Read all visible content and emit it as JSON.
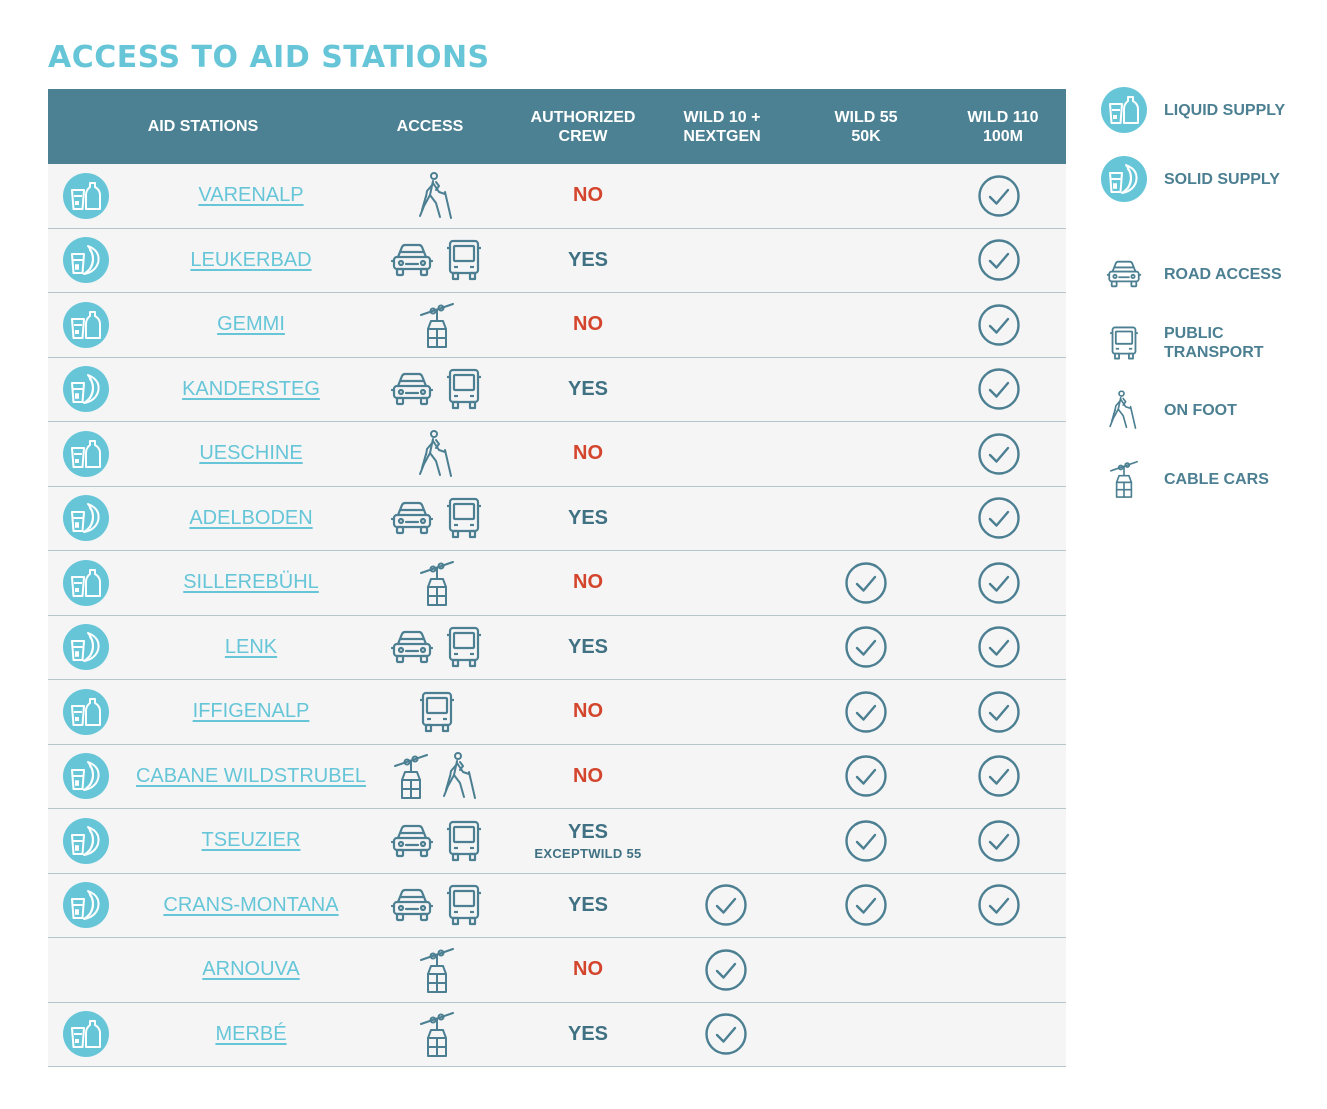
{
  "title": "ACCESS TO AID STATIONS",
  "colors": {
    "title": "#66c6d8",
    "header_bg": "#4b8193",
    "row_bg": "#f5f5f6",
    "no": "#d3452c",
    "yes": "#3f7183",
    "icon": "#4b7f91",
    "supply_circle": "#66c6d8"
  },
  "headers": {
    "aid_stations": "AID STATIONS",
    "access": "ACCESS",
    "crew": "AUTHORIZED\nCREW",
    "wild10": "WILD 10 +\nNEXTGEN",
    "wild55": "WILD 55\n50K",
    "wild110": "WILD 110\n100M"
  },
  "stations": [
    {
      "name": "VARENALP",
      "supply": "liquid-icon",
      "access": [
        "on-foot-icon"
      ],
      "crew": "NO",
      "crew_note": "",
      "wild10": false,
      "wild55": false,
      "wild110": true
    },
    {
      "name": "LEUKERBAD",
      "supply": "solid-icon",
      "access": [
        "car-icon",
        "bus-icon"
      ],
      "crew": "YES",
      "crew_note": "",
      "wild10": false,
      "wild55": false,
      "wild110": true
    },
    {
      "name": "GEMMI",
      "supply": "liquid-icon",
      "access": [
        "cable-car-icon"
      ],
      "crew": "NO",
      "crew_note": "",
      "wild10": false,
      "wild55": false,
      "wild110": true
    },
    {
      "name": "KANDERSTEG",
      "supply": "solid-icon",
      "access": [
        "car-icon",
        "bus-icon"
      ],
      "crew": "YES",
      "crew_note": "",
      "wild10": false,
      "wild55": false,
      "wild110": true
    },
    {
      "name": "UESCHINE",
      "supply": "liquid-icon",
      "access": [
        "on-foot-icon"
      ],
      "crew": "NO",
      "crew_note": "",
      "wild10": false,
      "wild55": false,
      "wild110": true
    },
    {
      "name": "ADELBODEN",
      "supply": "solid-icon",
      "access": [
        "car-icon",
        "bus-icon"
      ],
      "crew": "YES",
      "crew_note": "",
      "wild10": false,
      "wild55": false,
      "wild110": true
    },
    {
      "name": "SILLEREBÜHL",
      "supply": "liquid-icon",
      "access": [
        "cable-car-icon"
      ],
      "crew": "NO",
      "crew_note": "",
      "wild10": false,
      "wild55": true,
      "wild110": true
    },
    {
      "name": "LENK",
      "supply": "solid-icon",
      "access": [
        "car-icon",
        "bus-icon"
      ],
      "crew": "YES",
      "crew_note": "",
      "wild10": false,
      "wild55": true,
      "wild110": true
    },
    {
      "name": "IFFIGENALP",
      "supply": "liquid-icon",
      "access": [
        "bus-icon"
      ],
      "crew": "NO",
      "crew_note": "",
      "wild10": false,
      "wild55": true,
      "wild110": true
    },
    {
      "name": "CABANE WILDSTRUBEL",
      "supply": "solid-icon",
      "access": [
        "cable-car-icon",
        "on-foot-icon"
      ],
      "crew": "NO",
      "crew_note": "",
      "wild10": false,
      "wild55": true,
      "wild110": true
    },
    {
      "name": "TSEUZIER",
      "supply": "solid-icon",
      "access": [
        "car-icon",
        "bus-icon"
      ],
      "crew": "YES",
      "crew_note": "EXCEPTWILD 55",
      "wild10": false,
      "wild55": true,
      "wild110": true
    },
    {
      "name": "CRANS-MONTANA",
      "supply": "solid-icon",
      "access": [
        "car-icon",
        "bus-icon"
      ],
      "crew": "YES",
      "crew_note": "",
      "wild10": true,
      "wild55": true,
      "wild110": true
    },
    {
      "name": "ARNOUVA",
      "supply": "",
      "access": [
        "cable-car-icon"
      ],
      "crew": "NO",
      "crew_note": "",
      "wild10": true,
      "wild55": false,
      "wild110": false
    },
    {
      "name": "MERBÉ",
      "supply": "liquid-icon",
      "access": [
        "cable-car-icon"
      ],
      "crew": "YES",
      "crew_note": "",
      "wild10": true,
      "wild55": false,
      "wild110": false
    }
  ],
  "legend": [
    {
      "icon": "liquid-icon",
      "label": "LIQUID SUPPLY"
    },
    {
      "icon": "solid-icon",
      "label": "SOLID SUPPLY"
    },
    {
      "icon": "car-icon",
      "label": "ROAD ACCESS"
    },
    {
      "icon": "bus-icon",
      "label": "PUBLIC\nTRANSPORT"
    },
    {
      "icon": "on-foot-icon",
      "label": "ON FOOT"
    },
    {
      "icon": "cable-car-icon",
      "label": "CABLE CARS"
    }
  ]
}
